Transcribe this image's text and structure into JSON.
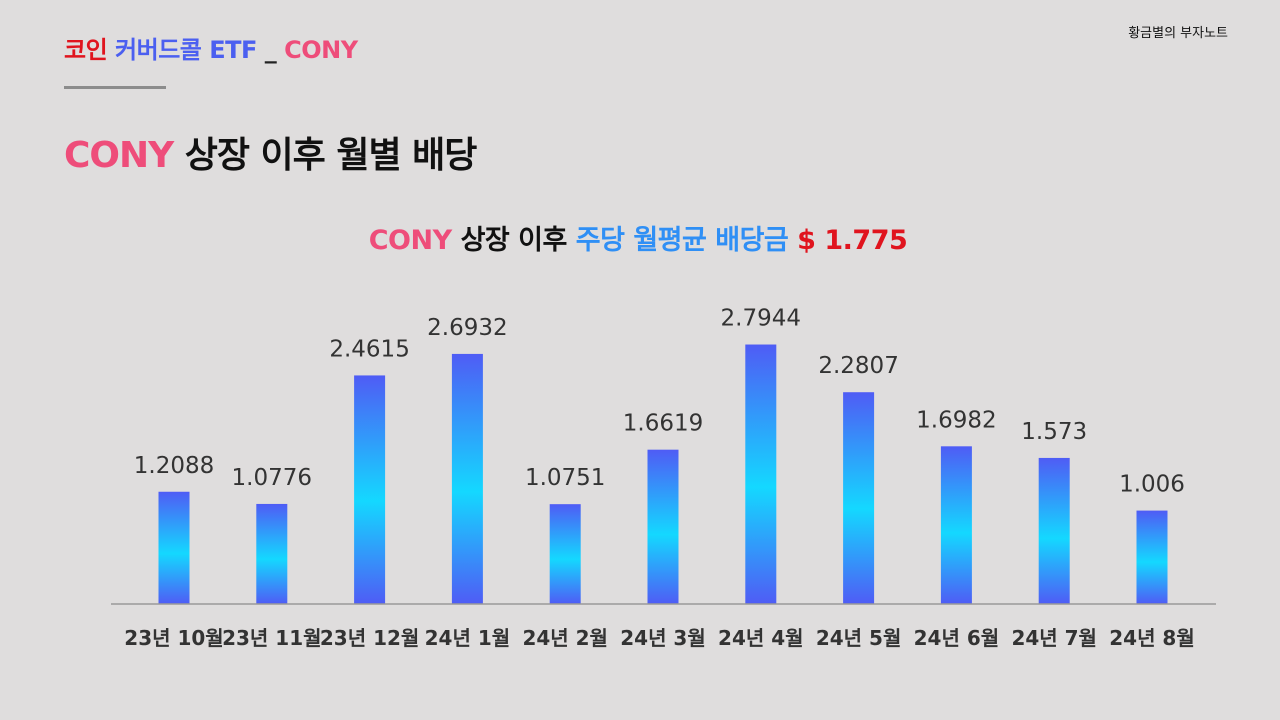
{
  "header": {
    "title_part1": "코인",
    "title_part2": "커버드콜 ETF",
    "title_sep": "_",
    "title_part3": "CONY",
    "brand": "황금별의 부자노트"
  },
  "heading": {
    "ticker": "CONY",
    "text": "상장 이후 월별 배당"
  },
  "subtitle": {
    "ticker": "CONY",
    "part1": "상장 이후",
    "part2": "주당 월평균 배당금",
    "value": "$ 1.775"
  },
  "colors": {
    "bar_top": "#4f5cf5",
    "bar_mid": "#14d8ff",
    "bar_bottom": "#4f5cf5",
    "axis": "#9a9a9a",
    "label": "#333333"
  },
  "chart_data": {
    "type": "bar",
    "categories": [
      "23년 10월",
      "23년 11월",
      "23년 12월",
      "24년 1월",
      "24년 2월",
      "24년 3월",
      "24년 4월",
      "24년 5월",
      "24년 6월",
      "24년 7월",
      "24년 8월"
    ],
    "values": [
      1.2088,
      1.0776,
      2.4615,
      2.6932,
      1.0751,
      1.6619,
      2.7944,
      2.2807,
      1.6982,
      1.573,
      1.006
    ],
    "value_labels": [
      "1.2088",
      "1.0776",
      "2.4615",
      "2.6932",
      "1.0751",
      "1.6619",
      "2.7944",
      "2.2807",
      "1.6982",
      "1.573",
      "1.006"
    ],
    "ylim": [
      0,
      2.8
    ],
    "grid": false
  }
}
